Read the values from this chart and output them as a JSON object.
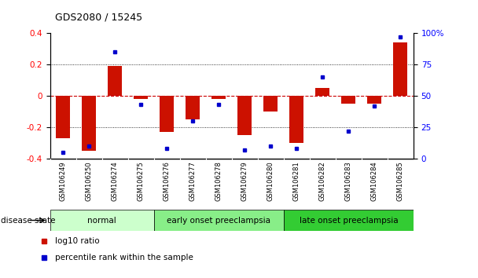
{
  "title": "GDS2080 / 15245",
  "samples": [
    "GSM106249",
    "GSM106250",
    "GSM106274",
    "GSM106275",
    "GSM106276",
    "GSM106277",
    "GSM106278",
    "GSM106279",
    "GSM106280",
    "GSM106281",
    "GSM106282",
    "GSM106283",
    "GSM106284",
    "GSM106285"
  ],
  "log10_ratio": [
    -0.27,
    -0.35,
    0.19,
    -0.02,
    -0.23,
    -0.15,
    -0.02,
    -0.25,
    -0.1,
    -0.3,
    0.05,
    -0.05,
    -0.05,
    0.34
  ],
  "percentile_rank": [
    5,
    10,
    85,
    43,
    8,
    30,
    43,
    7,
    10,
    8,
    65,
    22,
    42,
    97
  ],
  "disease_groups": [
    {
      "label": "normal",
      "start": 0,
      "end": 4,
      "color": "#ccffcc"
    },
    {
      "label": "early onset preeclampsia",
      "start": 4,
      "end": 9,
      "color": "#88ee88"
    },
    {
      "label": "late onset preeclampsia",
      "start": 9,
      "end": 14,
      "color": "#33cc33"
    }
  ],
  "bar_color": "#cc1100",
  "dot_color": "#0000cc",
  "ylim_left": [
    -0.4,
    0.4
  ],
  "ylim_right": [
    0,
    100
  ],
  "yticks_left": [
    -0.4,
    -0.2,
    0.0,
    0.2,
    0.4
  ],
  "yticks_right": [
    0,
    25,
    50,
    75,
    100
  ],
  "ytick_labels_right": [
    "0",
    "25",
    "50",
    "75",
    "100%"
  ],
  "zero_line_color": "#cc0000",
  "grid_color": "#000000",
  "legend_items": [
    {
      "label": "log10 ratio",
      "color": "#cc1100"
    },
    {
      "label": "percentile rank within the sample",
      "color": "#0000cc"
    }
  ],
  "disease_state_label": "disease state",
  "bg_color": "#ffffff",
  "tick_bg_color": "#c8c8c8"
}
